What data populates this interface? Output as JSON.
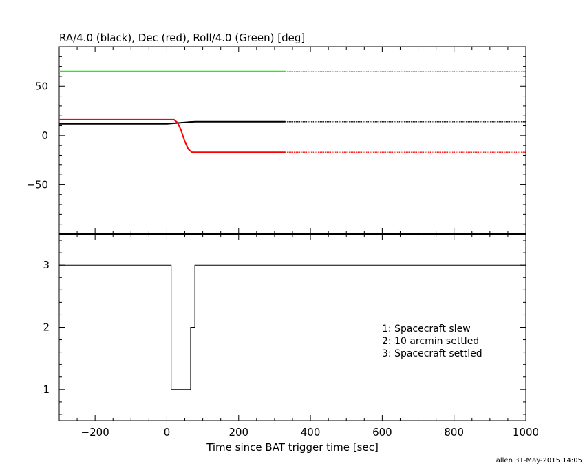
{
  "chart_data": [
    {
      "type": "line",
      "title": "RA/4.0 (black), Dec (red), Roll/4.0 (Green) [deg]",
      "xlim": [
        -300,
        1000
      ],
      "ylim": [
        -100,
        90
      ],
      "grid": false,
      "xticks": [
        -200,
        0,
        200,
        400,
        600,
        800,
        1000
      ],
      "yticks": [
        -50,
        0,
        50
      ],
      "ytick_labels": [
        "−50",
        "0",
        "50"
      ],
      "series": [
        {
          "color": "#000000",
          "solid": {
            "x": [
              -300,
              0,
              20,
              50,
              65,
              80,
              330
            ],
            "y": [
              12,
              12,
              12.5,
              13.3,
              13.8,
              14,
              14
            ]
          },
          "dotted": {
            "x": [
              330,
              1000
            ],
            "y": [
              14,
              14
            ]
          }
        },
        {
          "color": "#ff0000",
          "solid": {
            "x": [
              -300,
              20,
              30,
              40,
              50,
              60,
              70,
              80,
              330
            ],
            "y": [
              16,
              16,
              13,
              5,
              -6,
              -14,
              -17,
              -17,
              -17
            ]
          },
          "dotted": {
            "x": [
              330,
              1000
            ],
            "y": [
              -17,
              -17
            ]
          }
        },
        {
          "color": "#00ff00",
          "solid": {
            "x": [
              -300,
              330
            ],
            "y": [
              65,
              65
            ]
          },
          "dotted": {
            "x": [
              330,
              1000
            ],
            "y": [
              65,
              65
            ]
          }
        }
      ]
    },
    {
      "type": "line",
      "xlabel": "Time since BAT trigger time [sec]",
      "xlim": [
        -300,
        1000
      ],
      "ylim": [
        0.5,
        3.5
      ],
      "grid": false,
      "xticks": [
        -200,
        0,
        200,
        400,
        600,
        800,
        1000
      ],
      "xtick_labels": [
        "−200",
        "0",
        "200",
        "400",
        "600",
        "800",
        "1000"
      ],
      "yticks": [
        1,
        2,
        3
      ],
      "step_series": {
        "color": "#000000",
        "x": [
          -300,
          12,
          12,
          66,
          66,
          78,
          78,
          1000
        ],
        "y": [
          3,
          3,
          1,
          1,
          2,
          2,
          3,
          3
        ]
      },
      "annotations": [
        "1: Spacecraft slew",
        "2: 10 arcmin settled",
        "3: Spacecraft settled"
      ]
    }
  ],
  "credit": "allen 31-May-2015 14:05"
}
